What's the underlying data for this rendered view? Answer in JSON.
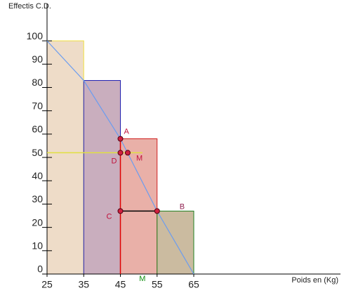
{
  "chart_data": {
    "type": "histogram",
    "ylabel": "Effectis C.D.",
    "xlabel": "Poids en (Kg)",
    "bins": [
      25,
      35,
      45,
      55,
      65
    ],
    "values": [
      100,
      83,
      58,
      27
    ],
    "colors": [
      "#eedcc8",
      "#c9aebe",
      "#e9b0a8",
      "#cbbba0"
    ],
    "edge_colors": [
      "#f0e040",
      "#2020b0",
      "#d02020",
      "#208020"
    ],
    "polygon": {
      "x": [
        25,
        35,
        45,
        55,
        65
      ],
      "y": [
        100,
        83,
        58,
        27,
        0
      ],
      "color": "#6a9cf0"
    },
    "segments": [
      {
        "x": [
          45,
          45
        ],
        "y": [
          58,
          0
        ],
        "color": "#e00000"
      },
      {
        "x": [
          45,
          55
        ],
        "y": [
          27,
          27
        ],
        "color": "#000000"
      },
      {
        "x": [
          25,
          51
        ],
        "y": [
          52,
          52
        ],
        "color": "#e0e040"
      }
    ],
    "points": [
      {
        "label": "A",
        "x": 45,
        "y": 58,
        "color": "#c0103a"
      },
      {
        "label": "D",
        "x": 45,
        "y": 52,
        "color": "#c0103a"
      },
      {
        "label": "M",
        "x": 47,
        "y": 52,
        "color": "#c0103a"
      },
      {
        "label": "C",
        "x": 45,
        "y": 27,
        "color": "#c0103a"
      },
      {
        "label": "B",
        "x": 55,
        "y": 27,
        "color": "#902050"
      }
    ],
    "axis_marker": {
      "label": "M",
      "x": 51,
      "color": "#109010"
    },
    "xlim": [
      25,
      105
    ],
    "ylim": [
      0,
      116
    ],
    "xticks": [
      25,
      35,
      45,
      55,
      65
    ],
    "yticks": [
      0,
      10,
      20,
      30,
      40,
      50,
      60,
      70,
      80,
      90,
      100
    ]
  }
}
